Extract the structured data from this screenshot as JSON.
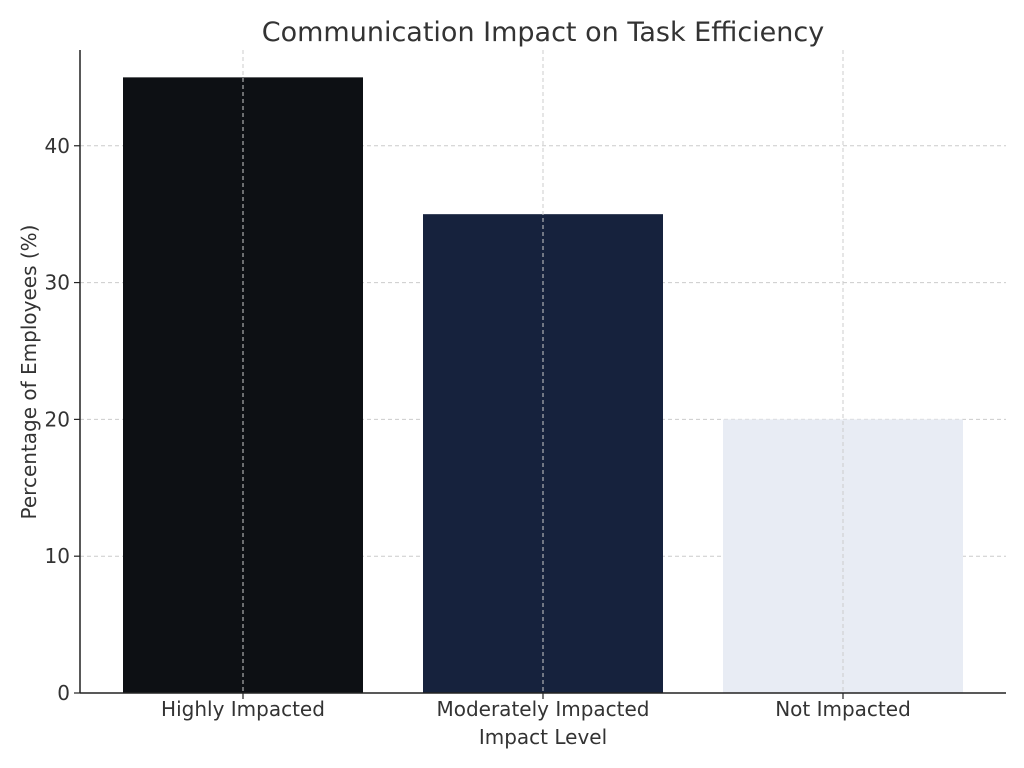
{
  "chart_data": {
    "type": "bar",
    "title": "Communication Impact on Task Efficiency",
    "xlabel": "Impact Level",
    "ylabel": "Percentage of Employees (%)",
    "categories": [
      "Highly Impacted",
      "Moderately Impacted",
      "Not Impacted"
    ],
    "values": [
      45,
      35,
      20
    ],
    "colors": [
      "#0d1014",
      "#16223d",
      "#e8ecf4"
    ],
    "ylim": [
      0,
      47
    ],
    "yticks": [
      0,
      10,
      20,
      30,
      40
    ],
    "grid": true
  }
}
